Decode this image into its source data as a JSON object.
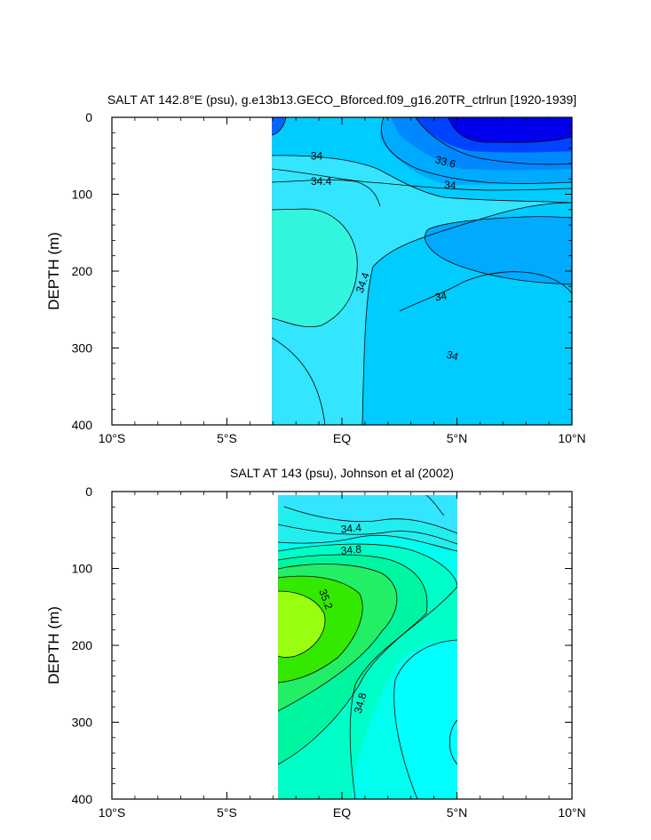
{
  "chart_data": [
    {
      "type": "contour",
      "title": "SALT AT 142.8°E (psu), g.e13b13.GECO_Bforced.f09_g16.20TR_ctrlrun [1920-1939]",
      "ylabel": "DEPTH (m)",
      "xlabel": "",
      "xlim": [
        -10,
        10
      ],
      "ylim": [
        400,
        0
      ],
      "xticks": [
        {
          "v": -10,
          "label": "10°S"
        },
        {
          "v": -5,
          "label": "5°S"
        },
        {
          "v": 0,
          "label": "EQ"
        },
        {
          "v": 5,
          "label": "5°N"
        },
        {
          "v": 10,
          "label": "10°N"
        }
      ],
      "yticks": [
        0,
        100,
        200,
        300,
        400
      ],
      "data_extent": {
        "lat": [
          -3.0,
          10.0
        ],
        "depth": [
          0,
          400
        ]
      },
      "contour_labels": [
        {
          "text": "34",
          "lat": -1.1,
          "depth": 50,
          "rotate": 0
        },
        {
          "text": "34.4",
          "lat": -0.9,
          "depth": 83,
          "rotate": 0
        },
        {
          "text": "33.6",
          "lat": 4.5,
          "depth": 58,
          "rotate": 15
        },
        {
          "text": "34",
          "lat": 4.7,
          "depth": 88,
          "rotate": 5
        },
        {
          "text": "34.4",
          "lat": 0.9,
          "depth": 215,
          "rotate": -70
        },
        {
          "text": "34",
          "lat": 4.3,
          "depth": 233,
          "rotate": -10
        },
        {
          "text": "34",
          "lat": 4.8,
          "depth": 310,
          "rotate": 15
        }
      ]
    },
    {
      "type": "contour",
      "title": "SALT AT 143 (psu), Johnson et al (2002)",
      "ylabel": "DEPTH (m)",
      "xlabel": "",
      "xlim": [
        -10,
        10
      ],
      "ylim": [
        400,
        0
      ],
      "xticks": [
        {
          "v": -10,
          "label": "10°S"
        },
        {
          "v": -5,
          "label": "5°S"
        },
        {
          "v": 0,
          "label": "EQ"
        },
        {
          "v": 5,
          "label": "5°N"
        },
        {
          "v": 10,
          "label": "10°N"
        }
      ],
      "yticks": [
        0,
        100,
        200,
        300,
        400
      ],
      "data_extent": {
        "lat": [
          -2.7,
          5.0
        ],
        "depth": [
          5,
          400
        ]
      },
      "contour_labels": [
        {
          "text": "34.4",
          "lat": 0.4,
          "depth": 48,
          "rotate": -5
        },
        {
          "text": "34.8",
          "lat": 0.4,
          "depth": 76,
          "rotate": -5
        },
        {
          "text": "35.2",
          "lat": -0.7,
          "depth": 140,
          "rotate": 70
        },
        {
          "text": "34.8",
          "lat": 0.8,
          "depth": 275,
          "rotate": -75
        }
      ]
    }
  ]
}
